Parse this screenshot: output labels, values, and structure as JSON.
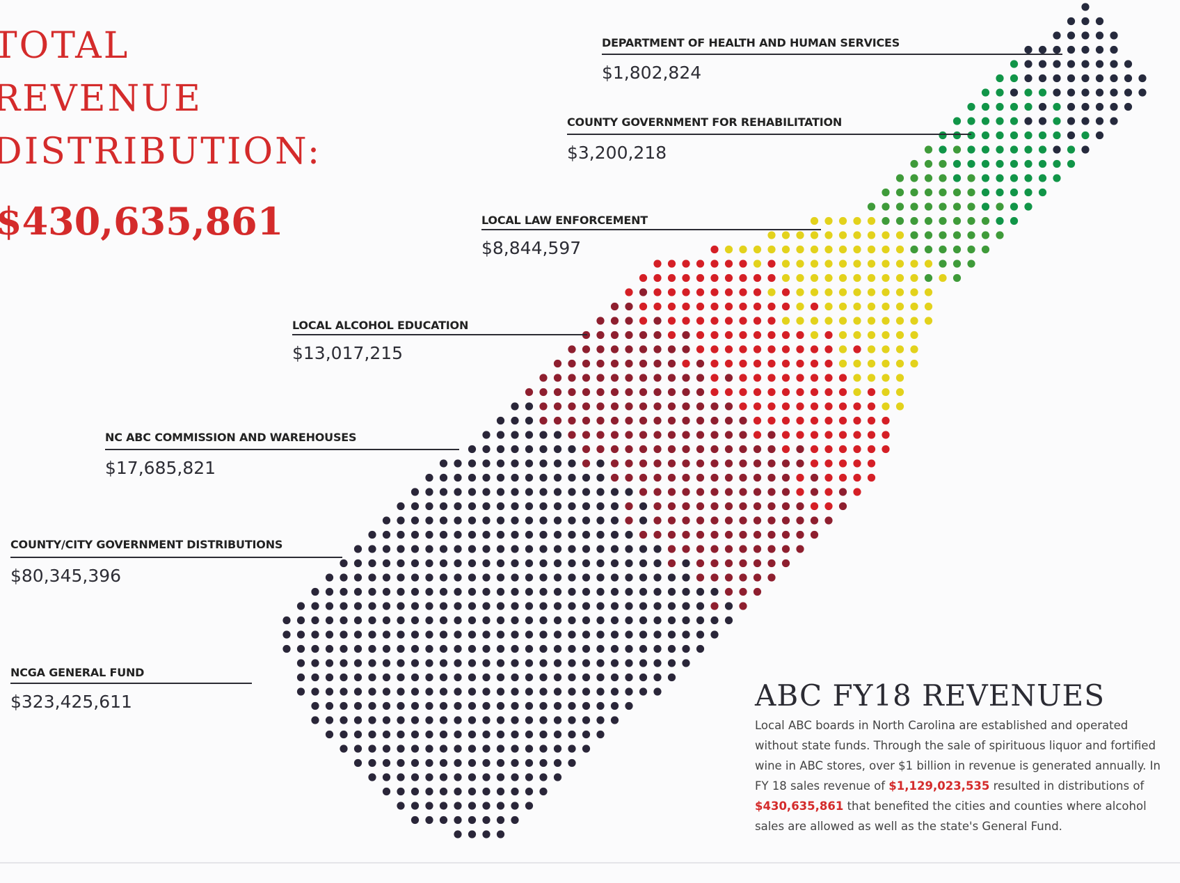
{
  "header": {
    "title_lines": [
      "TOTAL",
      "REVENUE",
      "DISTRIBUTION:"
    ],
    "total": "$430,635,861"
  },
  "distributions": [
    {
      "label": "DEPARTMENT OF HEALTH AND HUMAN SERVICES",
      "amount": "$1,802,824"
    },
    {
      "label": "COUNTY GOVERNMENT FOR REHABILITATION",
      "amount": "$3,200,218"
    },
    {
      "label": "LOCAL LAW ENFORCEMENT",
      "amount": "$8,844,597"
    },
    {
      "label": "LOCAL ALCOHOL EDUCATION",
      "amount": "$13,017,215"
    },
    {
      "label": "NC ABC COMMISSION AND WAREHOUSES",
      "amount": "$17,685,821"
    },
    {
      "label": "COUNTY/CITY GOVERNMENT DISTRIBUTIONS",
      "amount": "$80,345,396"
    },
    {
      "label": "NCGA GENERAL FUND",
      "amount": "$323,425,611"
    }
  ],
  "sidebar": {
    "title": "ABC FY18 REVENUES",
    "body": [
      "Local ABC boards in North Carolina are established and operated without state funds. Through the sale of spirituous liquor and fortified wine in ABC stores, over $1 billion in revenue is generated annually. In FY 18 sales revenue of ",
      "$1,129,023,535",
      " resulted in distributions of ",
      "$430,635,861",
      " that benefited the cities and counties where alcohol sales are allowed as well as the state's General Fund."
    ]
  }
}
